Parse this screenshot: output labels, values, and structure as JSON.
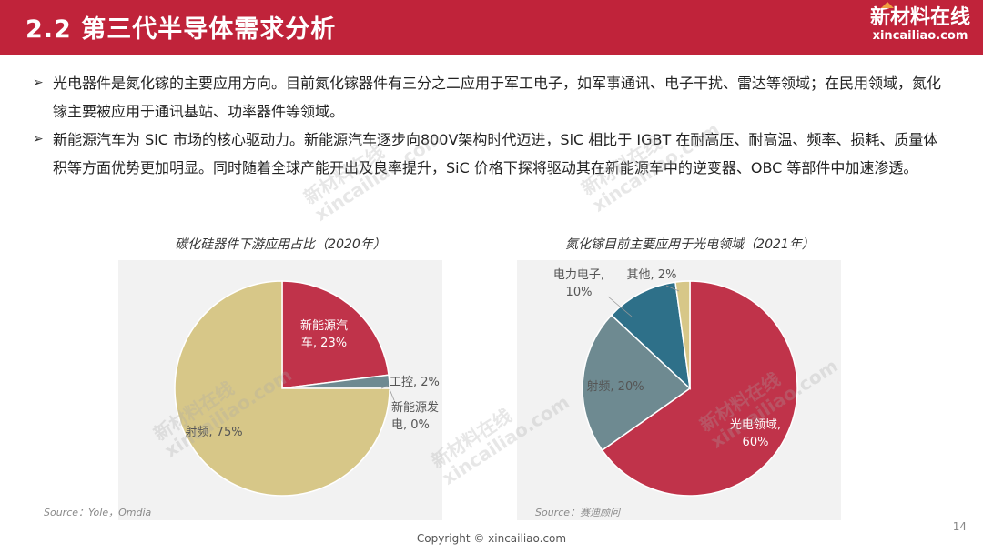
{
  "header": {
    "title": "2.2 第三代半导体需求分析",
    "color": "#c0233a"
  },
  "logo": {
    "name": "新材料在线",
    "domain": "xincailiao.com"
  },
  "bullets": [
    {
      "marker": "➢",
      "text": "光电器件是氮化镓的主要应用方向。目前氮化镓器件有三分之二应用于军工电子，如军事通讯、电子干扰、雷达等领域；在民用领域，氮化镓主要被应用于通讯基站、功率器件等领域。"
    },
    {
      "marker": "➢",
      "text": "新能源汽车为 SiC 市场的核心驱动力。新能源汽车逐步向800V架构时代迈进，SiC 相比于 IGBT 在耐高压、耐高温、频率、损耗、质量体积等方面优势更加明显。同时随着全球产能开出及良率提升，SiC 价格下探将驱动其在新能源车中的逆变器、OBC 等部件中加速渗透。"
    }
  ],
  "chart_data": [
    {
      "type": "pie",
      "title": "碳化硅器件下游应用占比（2020年）",
      "source": "Source：Yole，Omdia",
      "slices": [
        {
          "label_lines": [
            "新能源汽",
            "车, 23%"
          ],
          "category": "新能源汽车",
          "value": 23,
          "color": "#c0334a"
        },
        {
          "label_lines": [
            "工控, 2%"
          ],
          "category": "工控",
          "value": 2,
          "color": "#6e8a91"
        },
        {
          "label_lines": [
            "新能源发",
            "电, 0%"
          ],
          "category": "新能源发电",
          "value": 0,
          "color": "#9aa3a6"
        },
        {
          "label_lines": [
            "射频, 75%"
          ],
          "category": "射频",
          "value": 75,
          "color": "#d7c788"
        }
      ]
    },
    {
      "type": "pie",
      "title": "氮化镓目前主要应用于光电领域（2021年）",
      "source": "Source：赛迪顾问",
      "slices": [
        {
          "label_lines": [
            "光电领域,",
            "60%"
          ],
          "category": "光电领域",
          "value": 60,
          "color": "#c0334a"
        },
        {
          "label_lines": [
            "射频, 20%"
          ],
          "category": "射频",
          "value": 20,
          "color": "#6e8a91"
        },
        {
          "label_lines": [
            "电力电子,",
            "10%"
          ],
          "category": "电力电子",
          "value": 10,
          "color": "#2e7089"
        },
        {
          "label_lines": [
            "其他, 2%"
          ],
          "category": "其他",
          "value": 2,
          "color": "#d7c788"
        }
      ]
    }
  ],
  "footer": {
    "copyright": "Copyright © xincailiao.com",
    "page_number": "14"
  },
  "watermark": {
    "line1": "新材料在线",
    "line2": "xincailiao.com"
  }
}
